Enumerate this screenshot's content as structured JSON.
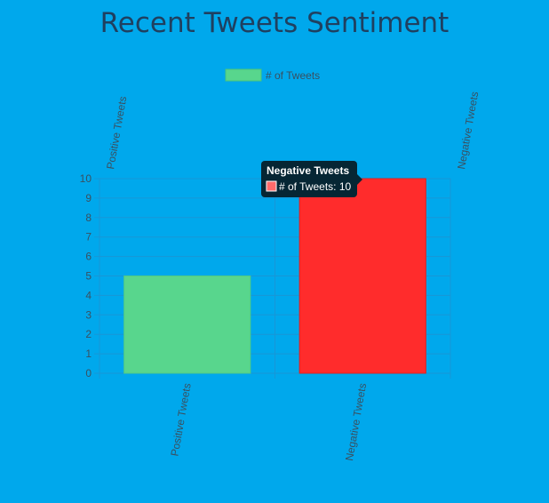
{
  "page": {
    "title": "Recent Tweets Sentiment"
  },
  "chart_data": {
    "type": "bar",
    "title": "Recent Tweets Sentiment",
    "categories": [
      "Positive Tweets",
      "Negative Tweets"
    ],
    "series": [
      {
        "name": "# of Tweets",
        "values": [
          5,
          10
        ],
        "colors": [
          "#58d68d",
          "#ff2c2c"
        ]
      }
    ],
    "ylim": [
      0,
      10
    ],
    "yticks": [
      "0",
      "1",
      "2",
      "3",
      "4",
      "5",
      "6",
      "7",
      "8",
      "9",
      "10"
    ],
    "grid": true,
    "legend_position": "top-center",
    "tooltip": {
      "title": "Negative Tweets",
      "label": "# of Tweets: 10",
      "swatch_color": "#ff6b6b"
    }
  },
  "colors": {
    "background": "#00a8ec",
    "title": "#1f4060",
    "axis_text": "#3a5060",
    "grid": "#1896d6",
    "tooltip_bg": "#062634"
  }
}
